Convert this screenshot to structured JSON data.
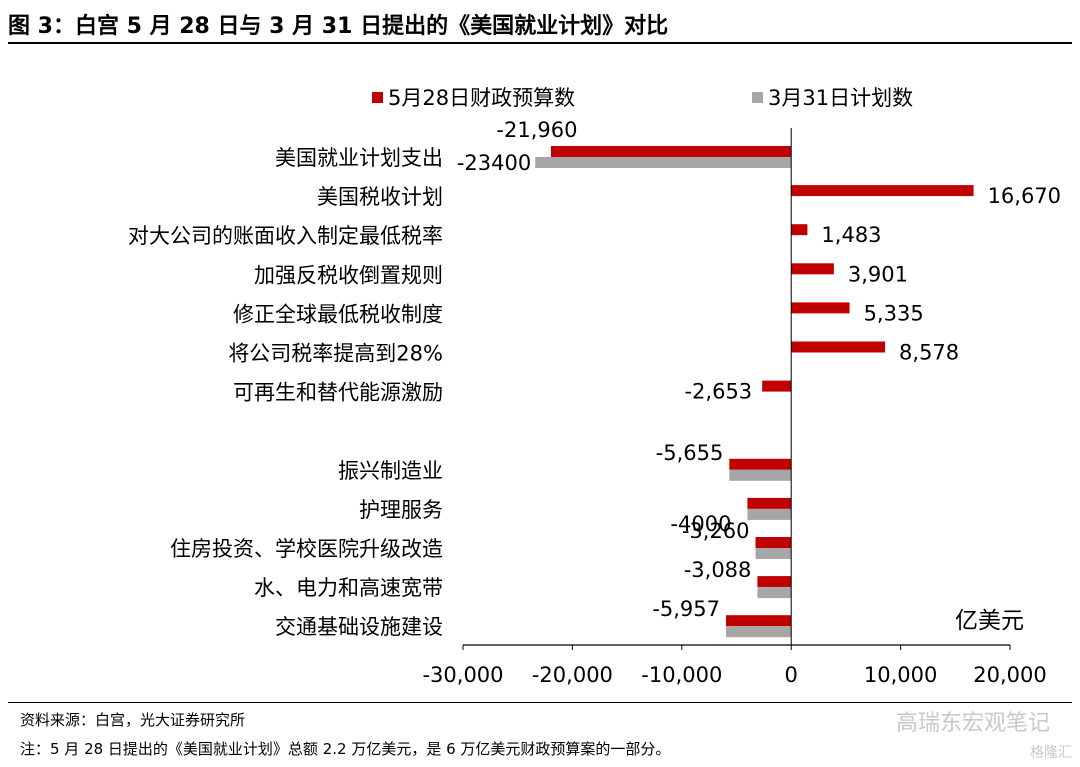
{
  "title": "图 3：白宫 5 月 28 日与 3 月 31 日提出的《美国就业计划》对比",
  "source": "资料来源：白宫，光大证券研究所",
  "note": "注：5 月 28 日提出的《美国就业计划》总额 2.2 万亿美元，是 6 万亿美元财政预算案的一部分。",
  "watermark": "高瑞东宏观笔记",
  "watermark_logo": "格隆汇",
  "colors": {
    "series_may": "#c00000",
    "series_mar": "#a6a6a6"
  },
  "chart_data": {
    "type": "bar",
    "orientation": "horizontal",
    "categories": [
      "美国就业计划支出",
      "美国税收计划",
      "对大公司的账面收入制定最低税率",
      "加强反税收倒置规则",
      "修正全球最低税收制度",
      "将公司税率提高到28%",
      "可再生和替代能源激励",
      "",
      "振兴制造业",
      "护理服务",
      "住房投资、学校医院升级改造",
      "水、电力和高速宽带",
      "交通基础设施建设"
    ],
    "series": [
      {
        "name": "5月28日财政预算数",
        "color": "#c00000",
        "values": [
          -21960,
          16670,
          1483,
          3901,
          5335,
          8578,
          -2653,
          null,
          -5655,
          -4000,
          -3260,
          -3088,
          -5957
        ],
        "labels": [
          "-21,960",
          "16,670",
          "1,483",
          "3,901",
          "5,335",
          "8,578",
          "-2,653",
          "",
          "-5,655",
          "",
          "-3,260",
          "-3,088",
          "-5,957"
        ]
      },
      {
        "name": "3月31日计划数",
        "color": "#a6a6a6",
        "values": [
          -23400,
          null,
          null,
          null,
          null,
          null,
          null,
          null,
          -5655,
          -4000,
          -3260,
          -3088,
          -5957
        ],
        "labels": [
          "-23400",
          "",
          "",
          "",
          "",
          "",
          "",
          "",
          "",
          "-4000",
          "",
          "",
          ""
        ]
      }
    ],
    "xlim": [
      -30000,
      20000
    ],
    "xticks": [
      -30000,
      -20000,
      -10000,
      0,
      10000,
      20000
    ],
    "xtick_labels": [
      "-30,000",
      "-20,000",
      "-10,000",
      "0",
      "10,000",
      "20,000"
    ],
    "unit_label": "亿美元",
    "legend_position": "top",
    "grid": false
  }
}
